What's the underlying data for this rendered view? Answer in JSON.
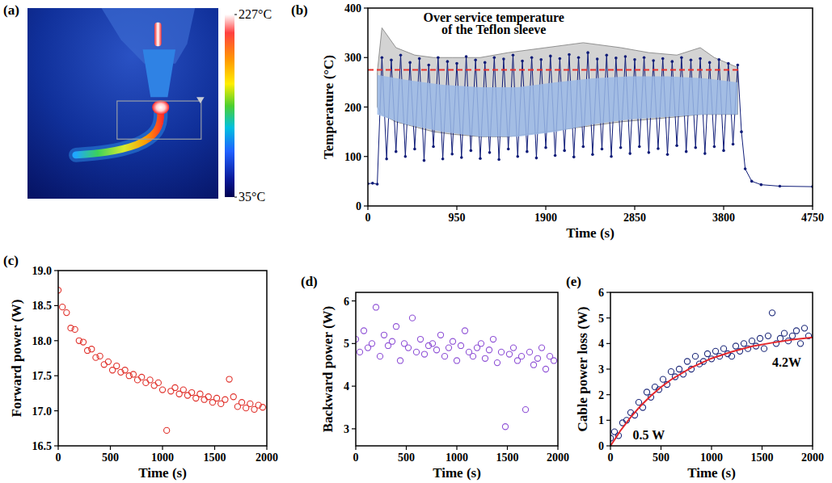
{
  "chart_data": [
    {
      "type": "image",
      "label": "(a)",
      "colorbar_lim": [
        35,
        227
      ],
      "colorbar_ticks": [
        {
          "value": 227,
          "label": "227°C"
        },
        {
          "value": 35,
          "label": "35°C"
        }
      ]
    },
    {
      "type": "line",
      "label": "(b)",
      "x_label": "Time (s)",
      "y_label": "Temperature (°C)",
      "xlim": [
        0,
        4750
      ],
      "xticks": [
        0,
        950,
        1900,
        2850,
        3800,
        4750
      ],
      "ylim": [
        0,
        400
      ],
      "yticks": [
        0,
        100,
        200,
        300,
        400
      ],
      "annotations": [
        {
          "text": "Over service temperature",
          "x": 1345,
          "y": 372
        },
        {
          "text": "of the Teflon sleeve",
          "x": 1345,
          "y": 348
        }
      ],
      "series": [
        {
          "type": "band",
          "color": "#d3d3d3",
          "x": [
            100,
            150,
            300,
            500,
            700,
            900,
            1200,
            1500,
            1900,
            2300,
            2700,
            3000,
            3300,
            3550,
            3700,
            3950
          ],
          "values": [
            270,
            360,
            320,
            305,
            300,
            300,
            300,
            310,
            320,
            330,
            320,
            310,
            305,
            320,
            300,
            280
          ],
          "lower": [
            200,
            185,
            170,
            160,
            150,
            145,
            140,
            140,
            150,
            160,
            170,
            175,
            180,
            185,
            185,
            185
          ]
        },
        {
          "type": "line",
          "color": "#0f1c78",
          "marker": "dot",
          "x": [
            0,
            50,
            100,
            150,
            200,
            250,
            300,
            350,
            400,
            450,
            500,
            550,
            600,
            650,
            700,
            750,
            800,
            850,
            900,
            950,
            1000,
            1050,
            1100,
            1150,
            1200,
            1250,
            1300,
            1350,
            1400,
            1450,
            1500,
            1550,
            1600,
            1650,
            1700,
            1750,
            1800,
            1850,
            1900,
            1950,
            2000,
            2050,
            2100,
            2150,
            2200,
            2250,
            2300,
            2350,
            2400,
            2450,
            2500,
            2550,
            2600,
            2650,
            2700,
            2750,
            2800,
            2850,
            2900,
            2950,
            3000,
            3050,
            3100,
            3150,
            3200,
            3250,
            3300,
            3350,
            3400,
            3450,
            3500,
            3550,
            3600,
            3650,
            3700,
            3750,
            3800,
            3850,
            3900,
            3950,
            3990,
            4030,
            4100,
            4200,
            4400,
            4750
          ],
          "values": [
            45,
            46,
            44,
            300,
            95,
            295,
            110,
            305,
            100,
            290,
            115,
            298,
            92,
            285,
            120,
            300,
            95,
            292,
            105,
            288,
            98,
            302,
            112,
            295,
            96,
            290,
            108,
            300,
            94,
            297,
            115,
            305,
            100,
            293,
            110,
            300,
            97,
            296,
            118,
            303,
            102,
            298,
            112,
            306,
            99,
            300,
            120,
            310,
            104,
            297,
            115,
            305,
            100,
            299,
            118,
            302,
            106,
            296,
            120,
            300,
            108,
            294,
            116,
            298,
            104,
            292,
            122,
            300,
            110,
            295,
            118,
            298,
            106,
            290,
            120,
            296,
            112,
            288,
            125,
            285,
            150,
            75,
            50,
            43,
            40,
            39
          ]
        },
        {
          "type": "band",
          "color": "#9ab9e6",
          "x": [
            100,
            400,
            800,
            1200,
            1600,
            2000,
            2400,
            2800,
            3200,
            3600,
            3950
          ],
          "values": [
            265,
            255,
            245,
            240,
            240,
            250,
            258,
            262,
            262,
            258,
            250
          ],
          "lower": [
            185,
            165,
            150,
            140,
            140,
            150,
            165,
            175,
            180,
            185,
            185
          ]
        },
        {
          "type": "line",
          "color": "#e8322c",
          "line_style": "dashed",
          "x": [
            0,
            3980
          ],
          "values": [
            275,
            275
          ]
        }
      ]
    },
    {
      "type": "scatter",
      "label": "(c)",
      "x_label": "Time (s)",
      "y_label": "Forward power (W)",
      "xlim": [
        0,
        2000
      ],
      "xticks": [
        0,
        500,
        1000,
        1500,
        2000
      ],
      "ylim": [
        16.5,
        19.0
      ],
      "yticks": [
        16.5,
        {
          "value": 17,
          "label": "17.0"
        },
        17.5,
        {
          "value": 18,
          "label": "18.0"
        },
        18.5,
        {
          "value": 19,
          "label": "19.0"
        }
      ],
      "series": [
        {
          "color": "#e0302a",
          "marker": "circle",
          "x": [
            0,
            40,
            80,
            120,
            160,
            200,
            240,
            280,
            320,
            360,
            400,
            440,
            480,
            520,
            560,
            600,
            640,
            680,
            720,
            760,
            800,
            840,
            880,
            920,
            960,
            1000,
            1040,
            1080,
            1120,
            1160,
            1200,
            1240,
            1280,
            1320,
            1360,
            1400,
            1440,
            1480,
            1520,
            1560,
            1600,
            1640,
            1680,
            1720,
            1760,
            1800,
            1840,
            1880,
            1920,
            1960
          ],
          "values": [
            18.72,
            18.48,
            18.4,
            18.18,
            18.16,
            18.0,
            17.98,
            17.86,
            17.88,
            17.76,
            17.78,
            17.66,
            17.7,
            17.58,
            17.64,
            17.55,
            17.58,
            17.5,
            17.52,
            17.44,
            17.48,
            17.4,
            17.44,
            17.36,
            17.4,
            17.3,
            16.72,
            17.28,
            17.33,
            17.24,
            17.3,
            17.22,
            17.26,
            17.18,
            17.24,
            17.16,
            17.2,
            17.12,
            17.18,
            17.1,
            17.16,
            17.45,
            17.2,
            17.06,
            17.12,
            17.04,
            17.1,
            17.02,
            17.08,
            17.05
          ]
        }
      ]
    },
    {
      "type": "scatter",
      "label": "(d)",
      "x_label": "Time (s)",
      "y_label": "Backward power (W)",
      "xlim": [
        0,
        2000
      ],
      "xticks": [
        0,
        500,
        1000,
        1500,
        2000
      ],
      "ylim": [
        2.6,
        6.2
      ],
      "yticks": [
        3,
        4,
        5,
        6
      ],
      "series": [
        {
          "color": "#8f52d6",
          "marker": "circle",
          "x": [
            0,
            40,
            80,
            120,
            160,
            200,
            240,
            280,
            320,
            360,
            400,
            440,
            480,
            520,
            560,
            600,
            640,
            680,
            720,
            760,
            800,
            840,
            880,
            920,
            960,
            1000,
            1040,
            1080,
            1120,
            1160,
            1200,
            1240,
            1280,
            1320,
            1360,
            1400,
            1440,
            1480,
            1520,
            1560,
            1600,
            1640,
            1680,
            1720,
            1760,
            1800,
            1840,
            1880,
            1920,
            1960
          ],
          "values": [
            5.1,
            4.8,
            5.3,
            4.9,
            5.0,
            5.85,
            4.7,
            5.2,
            4.95,
            5.05,
            5.4,
            4.6,
            5.0,
            4.9,
            5.6,
            4.8,
            5.1,
            4.75,
            4.95,
            5.0,
            4.85,
            5.2,
            4.7,
            4.9,
            5.05,
            4.6,
            4.95,
            5.3,
            4.8,
            4.7,
            4.9,
            5.0,
            4.65,
            4.85,
            5.1,
            4.55,
            4.8,
            3.05,
            4.75,
            4.9,
            4.6,
            4.7,
            3.45,
            4.8,
            4.5,
            4.65,
            4.9,
            4.4,
            4.7,
            4.6
          ]
        }
      ]
    },
    {
      "type": "scatter",
      "label": "(e)",
      "x_label": "Time (s)",
      "y_label": "Cable power loss (W)",
      "xlim": [
        0,
        2000
      ],
      "xticks": [
        0,
        500,
        1000,
        1500,
        2000
      ],
      "ylim": [
        0,
        6
      ],
      "yticks": [
        0,
        1,
        2,
        3,
        4,
        5,
        6
      ],
      "annotations": [
        {
          "text": "0.5 W",
          "x": 220,
          "y": 0.25
        },
        {
          "text": "4.2W",
          "x": 1600,
          "y": 3.1
        }
      ],
      "series": [
        {
          "color": "#1f2b7b",
          "marker": "circle",
          "x": [
            0,
            40,
            80,
            120,
            160,
            200,
            240,
            280,
            320,
            360,
            400,
            440,
            480,
            520,
            560,
            600,
            640,
            680,
            720,
            760,
            800,
            840,
            880,
            920,
            960,
            1000,
            1040,
            1080,
            1120,
            1160,
            1200,
            1240,
            1280,
            1320,
            1360,
            1400,
            1440,
            1480,
            1520,
            1560,
            1600,
            1640,
            1680,
            1720,
            1760,
            1800,
            1840,
            1880,
            1920,
            1960
          ],
          "values": [
            0.3,
            0.55,
            0.4,
            0.9,
            1.0,
            1.3,
            1.2,
            1.7,
            1.5,
            2.1,
            1.9,
            2.3,
            2.2,
            2.6,
            2.4,
            2.9,
            2.7,
            3.0,
            2.8,
            3.3,
            3.0,
            3.5,
            3.2,
            3.3,
            3.6,
            3.4,
            3.7,
            3.5,
            3.8,
            3.6,
            3.5,
            3.9,
            3.7,
            4.0,
            3.8,
            4.1,
            3.9,
            4.2,
            3.8,
            4.3,
            5.2,
            4.0,
            4.2,
            4.4,
            4.1,
            4.3,
            4.5,
            4.0,
            4.6,
            4.3
          ]
        },
        {
          "type": "line",
          "color": "#e3262b",
          "x": [
            0,
            100,
            200,
            300,
            400,
            500,
            600,
            800,
            1000,
            1200,
            1400,
            1600,
            1800,
            2000
          ],
          "values": [
            0,
            0.6,
            1.12,
            1.57,
            1.96,
            2.3,
            2.59,
            3.06,
            3.42,
            3.68,
            3.89,
            4.03,
            4.15,
            4.24
          ]
        }
      ]
    }
  ]
}
